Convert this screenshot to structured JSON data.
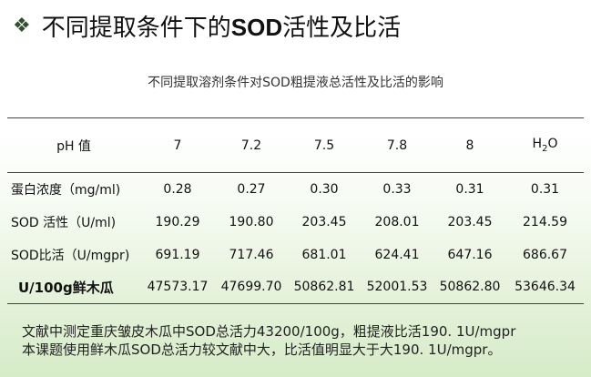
{
  "slide": {
    "title_pre": "不同提取条件下的",
    "title_bold": "SOD",
    "title_post": "活性及比活",
    "bullet": "❖"
  },
  "table_caption": "不同提取溶剂条件对SOD粗提液总活性及比活的影响",
  "table": {
    "header_label": "pH 值",
    "columns": [
      "7",
      "7.2",
      "7.5",
      "7.8",
      "8",
      "H2O"
    ],
    "rows": [
      {
        "label": "蛋白浓度（mg/ml)",
        "values": [
          "0.28",
          "0.27",
          "0.30",
          "0.33",
          "0.31",
          "0.31"
        ]
      },
      {
        "label": "SOD 活性（U/ml)",
        "values": [
          "190.29",
          "190.80",
          "203.45",
          "208.01",
          "203.45",
          "214.59"
        ]
      },
      {
        "label": "SOD比活（U/mgpr)",
        "values": [
          "691.19",
          "717.46",
          "681.01",
          "624.41",
          "647.16",
          "686.67"
        ]
      },
      {
        "label": "U/100g鲜木瓜",
        "values": [
          "47573.17",
          "47699.70",
          "50862.81",
          "52001.53",
          "50862.80",
          "53646.34"
        ]
      }
    ]
  },
  "notes": [
    "文献中测定重庆皱皮木瓜中SOD总活力43200/100g，粗提液比活190. 1U/mgpr",
    "本课题使用鲜木瓜SOD总活力较文献中大，比活值明显大于大190. 1U/mgpr。"
  ]
}
